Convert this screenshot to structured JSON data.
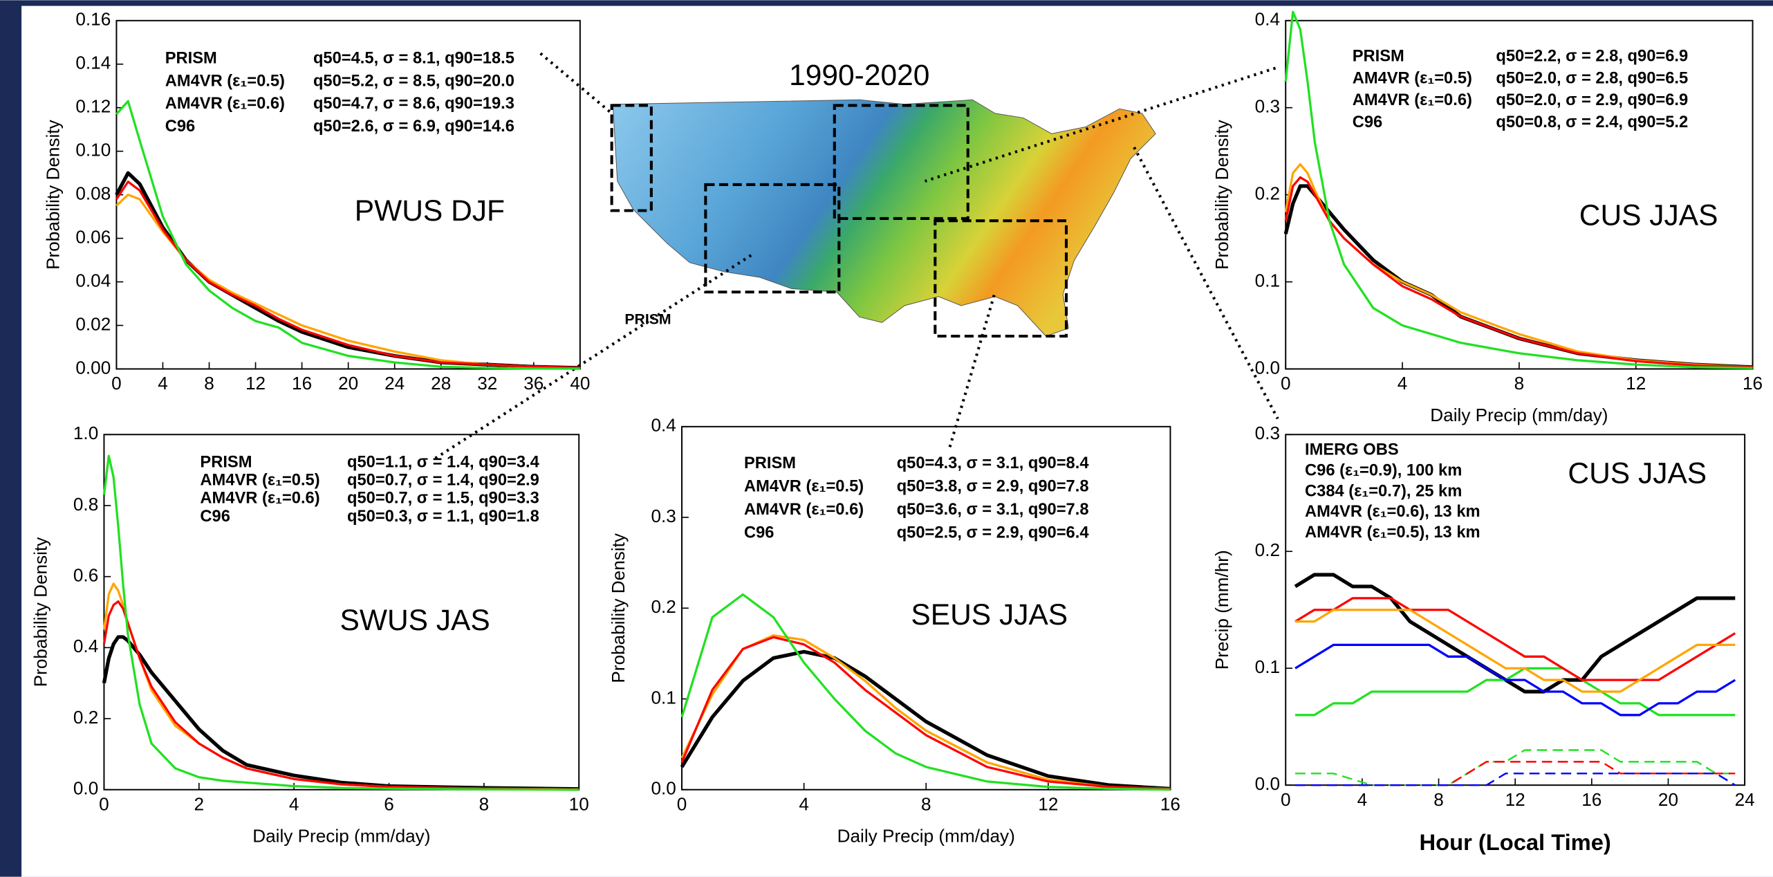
{
  "map": {
    "title": "1990-2020",
    "label": "PRISM"
  },
  "chart_data": [
    {
      "type": "line",
      "annotation": "PWUS DJF",
      "ylabel": "Probability Density",
      "xlim": [
        0,
        40
      ],
      "xticks": [
        0,
        4,
        8,
        12,
        16,
        20,
        24,
        28,
        32,
        36,
        40
      ],
      "ylim": [
        0,
        0.16
      ],
      "yticks": [
        {
          "value": 0,
          "label": "0.00"
        },
        0.02,
        0.04,
        0.06,
        0.08,
        {
          "value": 0.1,
          "label": "0.10"
        },
        0.12,
        0.14,
        0.16
      ],
      "x": [
        0,
        1,
        2,
        4,
        6,
        8,
        10,
        12,
        14,
        16,
        20,
        24,
        28,
        32,
        36,
        40
      ],
      "series": [
        {
          "name": "PRISM",
          "stats": "q50=4.5, σ = 8.1, q90=18.5",
          "color": "#000000",
          "values": [
            0.08,
            0.09,
            0.085,
            0.065,
            0.05,
            0.04,
            0.034,
            0.028,
            0.022,
            0.017,
            0.01,
            0.006,
            0.003,
            0.002,
            0.001,
            0.0005
          ]
        },
        {
          "name": "AM4VR (ε₁=0.5)",
          "stats": "q50=5.2, σ = 8.5, q90=20.0",
          "color": "#ffa500",
          "values": [
            0.075,
            0.08,
            0.078,
            0.063,
            0.05,
            0.041,
            0.035,
            0.03,
            0.025,
            0.02,
            0.013,
            0.008,
            0.004,
            0.002,
            0.001,
            0.0005
          ]
        },
        {
          "name": "AM4VR (ε₁=0.6)",
          "stats": "q50=4.7, σ = 8.6, q90=19.3",
          "color": "#ff0000",
          "values": [
            0.078,
            0.086,
            0.082,
            0.064,
            0.05,
            0.04,
            0.034,
            0.029,
            0.023,
            0.018,
            0.011,
            0.006,
            0.003,
            0.002,
            0.001,
            0.0005
          ]
        },
        {
          "name": "C96",
          "stats": "q50=2.6, σ = 6.9, q90=14.6",
          "color": "#22e022",
          "values": [
            0.117,
            0.123,
            0.105,
            0.07,
            0.048,
            0.036,
            0.028,
            0.022,
            0.019,
            0.012,
            0.006,
            0.003,
            0.001,
            0.0005,
            0.0002,
            0.0001
          ]
        }
      ]
    },
    {
      "type": "line",
      "annotation": "CUS JJAS",
      "ylabel": "Probability Density",
      "xlabel": "Daily Precip (mm/day)",
      "xlim": [
        0,
        16
      ],
      "xticks": [
        0,
        4,
        8,
        12,
        16
      ],
      "ylim": [
        0,
        0.4
      ],
      "yticks": [
        {
          "value": 0,
          "label": "0.0"
        },
        0.1,
        0.2,
        0.3,
        0.4
      ],
      "x": [
        0,
        0.25,
        0.5,
        0.75,
        1,
        1.5,
        2,
        3,
        4,
        5,
        6,
        8,
        10,
        12,
        14,
        16
      ],
      "series": [
        {
          "name": "PRISM",
          "stats": "q50=2.2, σ = 2.8, q90=6.9",
          "color": "#000000",
          "values": [
            0.155,
            0.19,
            0.21,
            0.21,
            0.2,
            0.18,
            0.16,
            0.125,
            0.1,
            0.085,
            0.06,
            0.035,
            0.018,
            0.01,
            0.005,
            0.002
          ]
        },
        {
          "name": "AM4VR (ε₁=0.5)",
          "stats": "q50=2.0, σ = 2.8, q90=6.5",
          "color": "#ffa500",
          "values": [
            0.18,
            0.225,
            0.235,
            0.225,
            0.205,
            0.17,
            0.15,
            0.12,
            0.1,
            0.085,
            0.065,
            0.04,
            0.02,
            0.01,
            0.005,
            0.002
          ]
        },
        {
          "name": "AM4VR (ε₁=0.6)",
          "stats": "q50=2.0, σ = 2.9, q90=6.9",
          "color": "#ff0000",
          "values": [
            0.17,
            0.21,
            0.22,
            0.215,
            0.2,
            0.17,
            0.15,
            0.12,
            0.095,
            0.08,
            0.06,
            0.035,
            0.018,
            0.009,
            0.004,
            0.002
          ]
        },
        {
          "name": "C96",
          "stats": "q50=0.8, σ = 2.4, q90=5.2",
          "color": "#22e022",
          "values": [
            0.33,
            0.41,
            0.39,
            0.33,
            0.26,
            0.17,
            0.12,
            0.07,
            0.05,
            0.04,
            0.03,
            0.018,
            0.01,
            0.005,
            0.002,
            0.001
          ]
        }
      ]
    },
    {
      "type": "line",
      "annotation": "SWUS JAS",
      "ylabel": "Probability Density",
      "xlabel": "Daily Precip (mm/day)",
      "xlim": [
        0,
        10
      ],
      "xticks": [
        0,
        2,
        4,
        6,
        8,
        10
      ],
      "ylim": [
        0,
        1.0
      ],
      "yticks": [
        {
          "value": 0,
          "label": "0.0"
        },
        0.2,
        0.4,
        0.6,
        0.8,
        {
          "value": 1.0,
          "label": "1.0"
        }
      ],
      "x": [
        0,
        0.1,
        0.2,
        0.3,
        0.4,
        0.5,
        0.75,
        1,
        1.5,
        2,
        2.5,
        3,
        4,
        5,
        6,
        8,
        10
      ],
      "series": [
        {
          "name": "PRISM",
          "stats": "q50=1.1, σ = 1.4, q90=3.4",
          "color": "#000000",
          "values": [
            0.3,
            0.37,
            0.41,
            0.43,
            0.43,
            0.42,
            0.38,
            0.33,
            0.25,
            0.17,
            0.11,
            0.07,
            0.04,
            0.02,
            0.01,
            0.005,
            0.002
          ]
        },
        {
          "name": "AM4VR (ε₁=0.5)",
          "stats": "q50=0.7, σ = 1.4, q90=2.9",
          "color": "#ffa500",
          "values": [
            0.45,
            0.55,
            0.58,
            0.56,
            0.52,
            0.47,
            0.37,
            0.28,
            0.18,
            0.13,
            0.09,
            0.06,
            0.03,
            0.015,
            0.008,
            0.003,
            0.001
          ]
        },
        {
          "name": "AM4VR (ε₁=0.6)",
          "stats": "q50=0.7, σ = 1.5, q90=3.3",
          "color": "#ff0000",
          "values": [
            0.41,
            0.49,
            0.52,
            0.53,
            0.51,
            0.47,
            0.37,
            0.29,
            0.19,
            0.13,
            0.09,
            0.06,
            0.03,
            0.015,
            0.008,
            0.003,
            0.001
          ]
        },
        {
          "name": "C96",
          "stats": "q50=0.3, σ = 1.1, q90=1.8",
          "color": "#22e022",
          "values": [
            0.83,
            0.94,
            0.88,
            0.74,
            0.58,
            0.44,
            0.24,
            0.13,
            0.06,
            0.035,
            0.025,
            0.02,
            0.01,
            0.005,
            0.003,
            0.001,
            0
          ]
        }
      ]
    },
    {
      "type": "line",
      "annotation": "SEUS JJAS",
      "ylabel": "Probability Density",
      "xlabel": "Daily Precip (mm/day)",
      "xlim": [
        0,
        16
      ],
      "xticks": [
        0,
        4,
        8,
        12,
        16
      ],
      "ylim": [
        0,
        0.4
      ],
      "yticks": [
        {
          "value": 0,
          "label": "0.0"
        },
        0.1,
        0.2,
        0.3,
        0.4
      ],
      "x": [
        0,
        1,
        2,
        3,
        4,
        5,
        6,
        7,
        8,
        10,
        12,
        14,
        16
      ],
      "series": [
        {
          "name": "PRISM",
          "stats": "q50=4.3, σ = 3.1, q90=8.4",
          "color": "#000000",
          "values": [
            0.025,
            0.08,
            0.12,
            0.145,
            0.152,
            0.145,
            0.125,
            0.1,
            0.075,
            0.038,
            0.015,
            0.005,
            0.001
          ]
        },
        {
          "name": "AM4VR (ε₁=0.5)",
          "stats": "q50=3.8, σ = 2.9, q90=7.8",
          "color": "#ffa500",
          "values": [
            0.035,
            0.105,
            0.155,
            0.17,
            0.165,
            0.145,
            0.12,
            0.09,
            0.065,
            0.03,
            0.011,
            0.003,
            0.001
          ]
        },
        {
          "name": "AM4VR (ε₁=0.6)",
          "stats": "q50=3.6, σ = 3.1, q90=7.8",
          "color": "#ff0000",
          "values": [
            0.03,
            0.11,
            0.155,
            0.168,
            0.16,
            0.14,
            0.11,
            0.085,
            0.06,
            0.025,
            0.009,
            0.003,
            0.001
          ]
        },
        {
          "name": "C96",
          "stats": "q50=2.5, σ = 2.9, q90=6.4",
          "color": "#22e022",
          "values": [
            0.08,
            0.19,
            0.215,
            0.19,
            0.14,
            0.1,
            0.065,
            0.04,
            0.025,
            0.009,
            0.003,
            0.001,
            0
          ]
        }
      ]
    },
    {
      "type": "line",
      "annotation": "CUS JJAS",
      "ylabel": "Precip (mm/hr)",
      "xlabel": "Hour (Local Time)",
      "xlim": [
        0,
        24
      ],
      "xticks": [
        0,
        4,
        8,
        12,
        16,
        20,
        24
      ],
      "ylim": [
        0,
        0.3
      ],
      "yticks": [
        {
          "value": 0,
          "label": "0.0"
        },
        0.1,
        0.2,
        0.3
      ],
      "x": [
        0.5,
        1.5,
        2.5,
        3.5,
        4.5,
        5.5,
        6.5,
        7.5,
        8.5,
        9.5,
        10.5,
        11.5,
        12.5,
        13.5,
        14.5,
        15.5,
        16.5,
        17.5,
        18.5,
        19.5,
        20.5,
        21.5,
        22.5,
        23.5
      ],
      "series": [
        {
          "name": "IMERG OBS",
          "color": "#000000",
          "values": [
            0.17,
            0.18,
            0.18,
            0.17,
            0.17,
            0.16,
            0.14,
            0.13,
            0.12,
            0.11,
            0.1,
            0.09,
            0.08,
            0.08,
            0.09,
            0.09,
            0.11,
            0.12,
            0.13,
            0.14,
            0.15,
            0.16,
            0.16,
            0.16
          ]
        },
        {
          "name": "C96 (ε₁=0.9), 100 km",
          "color": "#22e022",
          "values": [
            0.06,
            0.06,
            0.07,
            0.07,
            0.08,
            0.08,
            0.08,
            0.08,
            0.08,
            0.08,
            0.09,
            0.09,
            0.1,
            0.1,
            0.1,
            0.09,
            0.08,
            0.07,
            0.07,
            0.06,
            0.06,
            0.06,
            0.06,
            0.06
          ]
        },
        {
          "name": "C384 (ε₁=0.7),  25 km",
          "color": "#0000ff",
          "values": [
            0.1,
            0.11,
            0.12,
            0.12,
            0.12,
            0.12,
            0.12,
            0.12,
            0.11,
            0.11,
            0.1,
            0.09,
            0.09,
            0.08,
            0.08,
            0.07,
            0.07,
            0.06,
            0.06,
            0.07,
            0.07,
            0.08,
            0.08,
            0.09
          ]
        },
        {
          "name": "AM4VR (ε₁=0.6), 13 km",
          "color": "#ff0000",
          "values": [
            0.14,
            0.15,
            0.15,
            0.16,
            0.16,
            0.16,
            0.15,
            0.15,
            0.15,
            0.14,
            0.13,
            0.12,
            0.11,
            0.11,
            0.1,
            0.09,
            0.09,
            0.09,
            0.09,
            0.09,
            0.1,
            0.11,
            0.12,
            0.13
          ]
        },
        {
          "name": "AM4VR (ε₁=0.5), 13 km",
          "color": "#ffa500",
          "values": [
            0.14,
            0.14,
            0.15,
            0.15,
            0.15,
            0.15,
            0.15,
            0.14,
            0.13,
            0.12,
            0.11,
            0.1,
            0.1,
            0.09,
            0.09,
            0.08,
            0.08,
            0.08,
            0.09,
            0.1,
            0.11,
            0.12,
            0.12,
            0.12
          ]
        },
        {
          "color": "#22e022",
          "dashed": true,
          "values": [
            0.01,
            0.01,
            0.01,
            0.005,
            0,
            0,
            0,
            0,
            0,
            0.01,
            0.02,
            0.02,
            0.03,
            0.03,
            0.03,
            0.03,
            0.03,
            0.02,
            0.02,
            0.02,
            0.02,
            0.02,
            0.01,
            0.01
          ]
        },
        {
          "color": "#ff0000",
          "dashed": true,
          "values": [
            0,
            0,
            0,
            0,
            0,
            0,
            0,
            0,
            0,
            0.01,
            0.02,
            0.02,
            0.02,
            0.02,
            0.02,
            0.02,
            0.02,
            0.01,
            0.01,
            0.01,
            0.01,
            0.01,
            0.01,
            0.01
          ]
        },
        {
          "color": "#0000ff",
          "dashed": true,
          "values": [
            0,
            0,
            0,
            0,
            0,
            0,
            0,
            0,
            0,
            0,
            0,
            0.01,
            0.01,
            0.01,
            0.01,
            0.01,
            0.01,
            0.01,
            0.01,
            0.01,
            0.01,
            0.01,
            0.01,
            0
          ]
        }
      ]
    }
  ]
}
